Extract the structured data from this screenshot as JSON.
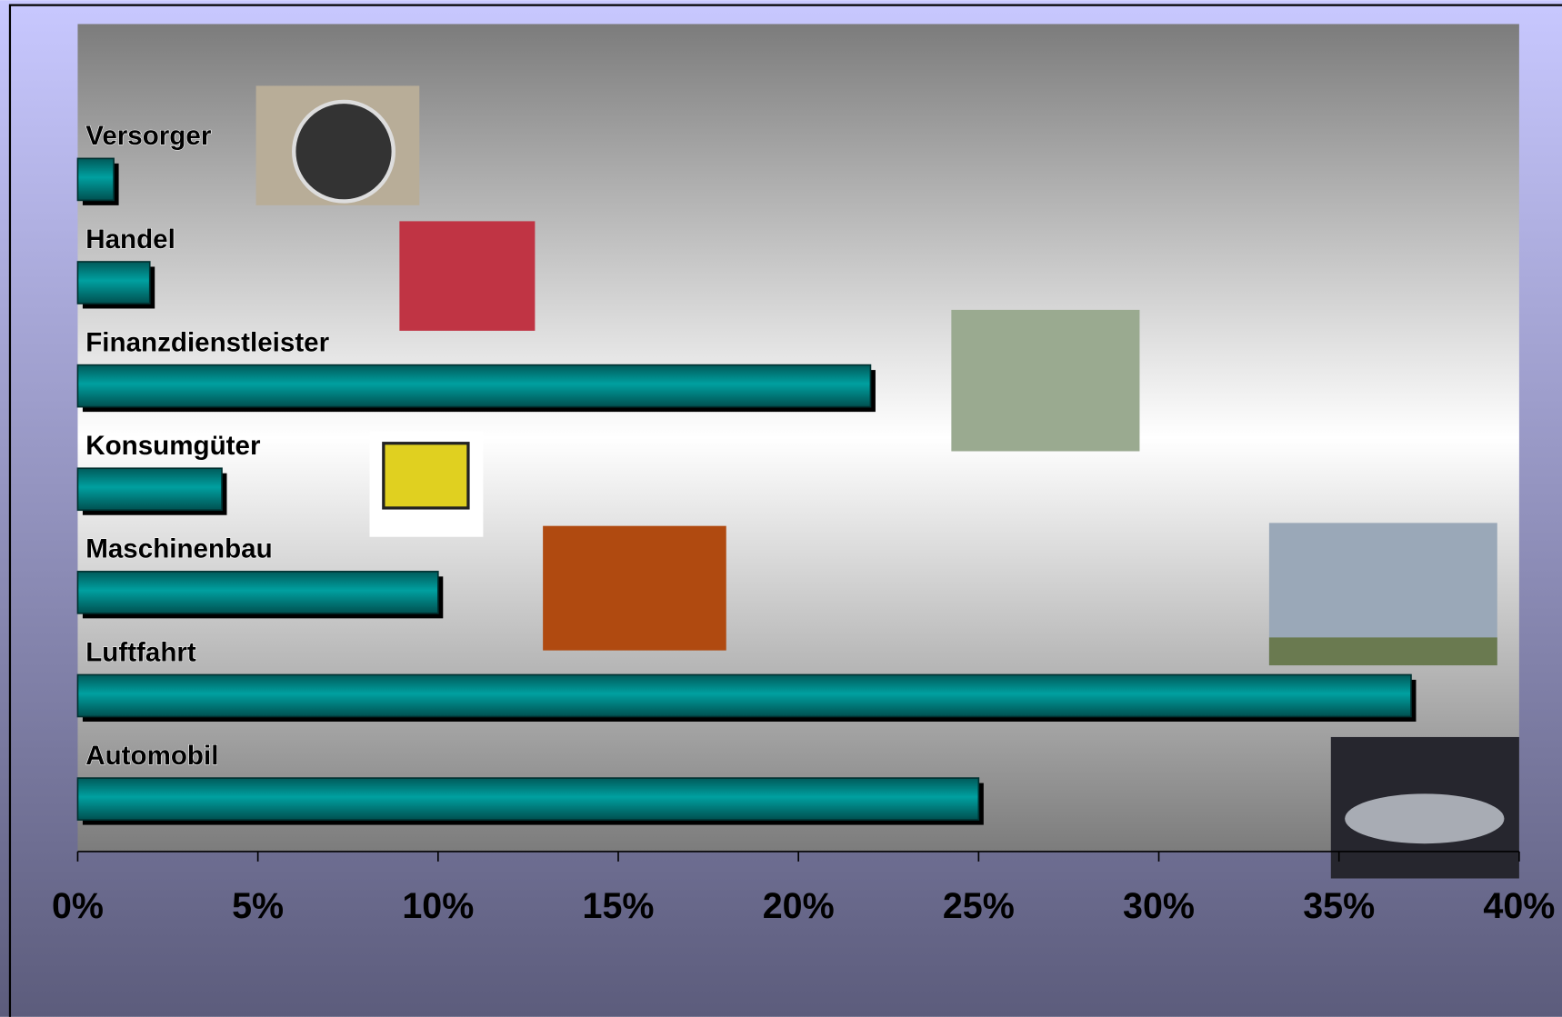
{
  "chart_data": {
    "type": "bar",
    "orientation": "horizontal",
    "categories": [
      "Versorger",
      "Handel",
      "Finanzdienstleister",
      "Konsumgüter",
      "Maschinenbau",
      "Luftfahrt",
      "Automobil"
    ],
    "values": [
      1,
      2,
      22,
      4,
      10,
      37,
      25
    ],
    "color": "#008080",
    "xlim": [
      0,
      40
    ],
    "xticks": [
      {
        "value": 0,
        "label": "0%"
      },
      {
        "value": 5,
        "label": "5%"
      },
      {
        "value": 10,
        "label": "10%"
      },
      {
        "value": 15,
        "label": "15%"
      },
      {
        "value": 20,
        "label": "20%"
      },
      {
        "value": 25,
        "label": "25%"
      },
      {
        "value": 30,
        "label": "30%"
      },
      {
        "value": 35,
        "label": "35%"
      },
      {
        "value": 40,
        "label": "40%"
      }
    ]
  }
}
